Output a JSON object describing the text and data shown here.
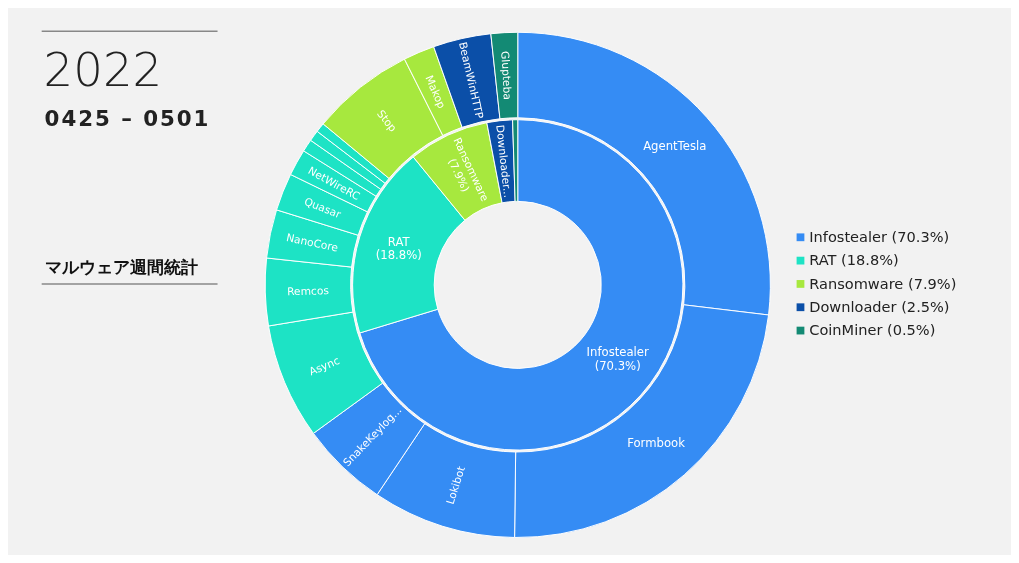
{
  "chart_data": [
    {
      "type": "donut",
      "title": "2022",
      "subtitle": "0425 – 0501",
      "annotations": [
        "マルウェア週間統計"
      ],
      "legend": "right",
      "categories": [
        "Infostealer (70.3%)",
        "RAT (18.8%)",
        "Ransomware (7.9%)",
        "Downloader (2.5%)",
        "CoinMiner (0.5%)"
      ],
      "values": [
        70.3,
        18.8,
        7.9,
        2.5,
        0.5
      ],
      "value_labels": [
        "Infostealer (70.3%)",
        "RAT (18.8%)",
        "Ransomware (7.9%)",
        "Downloader...",
        null
      ],
      "colors": [
        "#358cf4",
        "#1de3c5",
        "#a7e83e",
        "#0b4fa8",
        "#138a74"
      ]
    },
    {
      "type": "donut",
      "categories": [
        "AgentTesla",
        "Formbook",
        "Lokibot",
        "SnakeKeylog...",
        "Async",
        "Remcos",
        "NanoCore",
        "Quasar",
        "NetWireRC",
        null,
        null,
        null,
        "Stop",
        "Makop",
        "BeamWinHTTP",
        "Glupteba"
      ],
      "values": [
        26.9,
        23.3,
        9.2,
        5.6,
        7.4,
        4.3,
        3.1,
        2.4,
        1.7,
        0.8,
        0.7,
        0.6,
        6.6,
        2.0,
        3.7,
        1.7
      ],
      "colors": [
        "#358cf4",
        "#358cf4",
        "#358cf4",
        "#358cf4",
        "#1de3c5",
        "#1de3c5",
        "#1de3c5",
        "#1de3c5",
        "#1de3c5",
        "#1de3c5",
        "#1de3c5",
        "#1de3c5",
        "#a7e83e",
        "#a7e83e",
        "#0b4fa8",
        "#138a74"
      ]
    }
  ]
}
